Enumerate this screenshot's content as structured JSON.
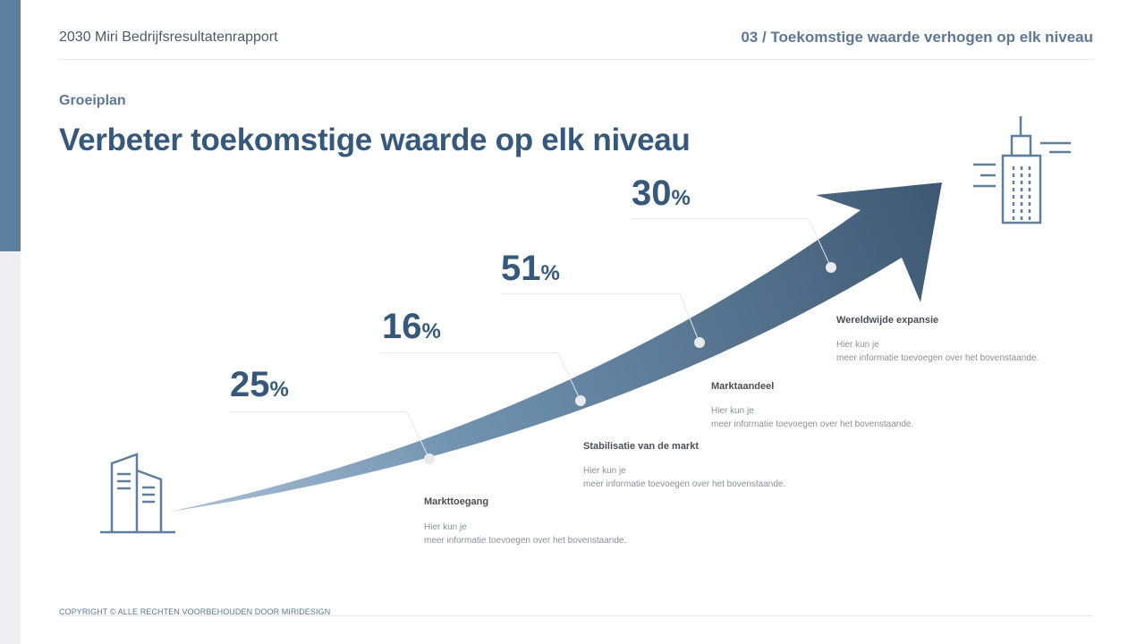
{
  "header": {
    "report_title": "2030 Miri Bedrijfsresultatenrapport",
    "section_title": "03 / Toekomstige waarde verhogen op elk niveau"
  },
  "section_label": "Groeiplan",
  "page_title": "Verbeter toekomstige waarde op elk niveau",
  "milestones": [
    {
      "value": "25",
      "unit": "%",
      "label": "Markttoegang",
      "desc_line1": "Hier kun je",
      "desc_line2": "meer informatie toevoegen over het bovenstaande."
    },
    {
      "value": "16",
      "unit": "%",
      "label": "Stabilisatie van de markt",
      "desc_line1": "Hier kun je",
      "desc_line2": "meer informatie toevoegen over het bovenstaande."
    },
    {
      "value": "51",
      "unit": "%",
      "label": "Marktaandeel",
      "desc_line1": "Hier kun je",
      "desc_line2": "meer informatie toevoegen over het bovenstaande."
    },
    {
      "value": "30",
      "unit": "%",
      "label": "Wereldwijde expansie",
      "desc_line1": "Hier kun je",
      "desc_line2": "meer informatie toevoegen over het bovenstaande."
    }
  ],
  "icons": {
    "start": "office-building-icon",
    "end": "skyscraper-icon"
  },
  "colors": {
    "accent": "#36587a",
    "arrow_start": "#8aa9c4",
    "arrow_end": "#3e5873",
    "sidebar": "#5d7e9c"
  },
  "footer": "COPYRIGHT © ALLE RECHTEN VOORBEHOUDEN DOOR MIRIDESIGN"
}
